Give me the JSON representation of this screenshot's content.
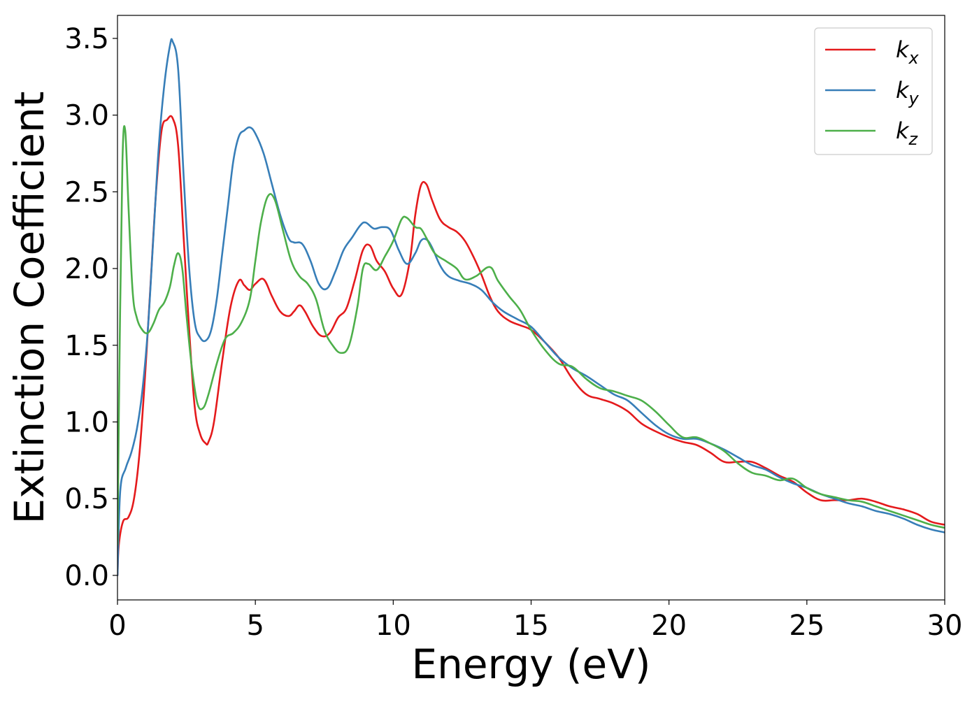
{
  "chart_data": {
    "type": "line",
    "title": "",
    "xlabel": "Energy (eV)",
    "ylabel": "Extinction Coefficient",
    "xlim": [
      0,
      30
    ],
    "ylim": [
      -0.16,
      3.65
    ],
    "xticks": [
      0,
      5,
      10,
      15,
      20,
      25,
      30
    ],
    "xtick_labels": [
      "0",
      "5",
      "10",
      "15",
      "20",
      "25",
      "30"
    ],
    "yticks": [
      0.0,
      0.5,
      1.0,
      1.5,
      2.0,
      2.5,
      3.0,
      3.5
    ],
    "ytick_labels": [
      "0.0",
      "0.5",
      "1.0",
      "1.5",
      "2.0",
      "2.5",
      "3.0",
      "3.5"
    ],
    "grid": false,
    "legend_position": "top-right",
    "series": [
      {
        "name": "k",
        "subscript": "x",
        "color": "#e41a1c",
        "x": [
          0,
          0.05,
          0.2,
          0.4,
          0.6,
          0.8,
          1.0,
          1.2,
          1.4,
          1.6,
          1.8,
          2.0,
          2.2,
          2.4,
          2.6,
          2.8,
          3.0,
          3.2,
          3.3,
          3.5,
          3.8,
          4.1,
          4.4,
          4.6,
          4.8,
          5.0,
          5.3,
          5.6,
          5.9,
          6.2,
          6.4,
          6.6,
          6.8,
          7.1,
          7.4,
          7.7,
          8.0,
          8.3,
          8.6,
          8.9,
          9.15,
          9.4,
          9.7,
          10.0,
          10.3,
          10.6,
          10.8,
          11.0,
          11.2,
          11.4,
          11.7,
          12.0,
          12.3,
          12.6,
          12.9,
          13.2,
          13.5,
          13.8,
          14.2,
          14.6,
          15.0,
          15.5,
          16.0,
          16.5,
          17.0,
          17.5,
          18.0,
          18.5,
          19.0,
          19.5,
          20.0,
          20.5,
          21.0,
          21.5,
          22.0,
          22.5,
          23.0,
          23.5,
          24.0,
          24.5,
          25.0,
          25.5,
          26.0,
          26.5,
          27.0,
          27.5,
          28.0,
          28.5,
          29.0,
          29.5,
          30.0
        ],
        "values": [
          0.0,
          0.2,
          0.35,
          0.38,
          0.5,
          0.8,
          1.3,
          1.9,
          2.5,
          2.9,
          2.97,
          2.98,
          2.8,
          2.2,
          1.6,
          1.1,
          0.92,
          0.86,
          0.87,
          1.0,
          1.4,
          1.75,
          1.92,
          1.89,
          1.86,
          1.9,
          1.93,
          1.82,
          1.72,
          1.69,
          1.72,
          1.76,
          1.72,
          1.62,
          1.56,
          1.58,
          1.68,
          1.74,
          1.92,
          2.12,
          2.15,
          2.05,
          1.98,
          1.87,
          1.83,
          2.05,
          2.35,
          2.54,
          2.55,
          2.45,
          2.32,
          2.27,
          2.24,
          2.18,
          2.08,
          1.96,
          1.82,
          1.72,
          1.66,
          1.63,
          1.6,
          1.52,
          1.42,
          1.28,
          1.18,
          1.15,
          1.12,
          1.07,
          0.99,
          0.94,
          0.9,
          0.87,
          0.85,
          0.8,
          0.74,
          0.74,
          0.74,
          0.7,
          0.65,
          0.61,
          0.54,
          0.49,
          0.49,
          0.49,
          0.5,
          0.48,
          0.45,
          0.43,
          0.4,
          0.35,
          0.33
        ]
      },
      {
        "name": "k",
        "subscript": "y",
        "color": "#377eb8",
        "x": [
          0,
          0.1,
          0.3,
          0.5,
          0.7,
          0.9,
          1.1,
          1.3,
          1.5,
          1.7,
          1.9,
          2.0,
          2.2,
          2.4,
          2.6,
          2.8,
          3.0,
          3.2,
          3.4,
          3.6,
          3.8,
          4.0,
          4.2,
          4.4,
          4.6,
          4.8,
          5.0,
          5.3,
          5.6,
          5.9,
          6.2,
          6.4,
          6.7,
          7.0,
          7.3,
          7.6,
          7.9,
          8.2,
          8.5,
          8.8,
          9.0,
          9.3,
          9.6,
          9.9,
          10.2,
          10.5,
          10.8,
          11.0,
          11.2,
          11.4,
          11.7,
          12.0,
          12.4,
          12.8,
          13.2,
          13.6,
          14.0,
          14.5,
          15.0,
          15.5,
          16.0,
          16.5,
          17.0,
          17.5,
          18.0,
          18.5,
          19.0,
          19.5,
          20.0,
          20.5,
          21.0,
          21.5,
          22.0,
          22.5,
          23.0,
          23.5,
          24.0,
          24.5,
          25.0,
          25.5,
          26.0,
          26.5,
          27.0,
          27.5,
          28.0,
          28.5,
          29.0,
          29.5,
          30.0
        ],
        "values": [
          0.0,
          0.55,
          0.7,
          0.8,
          0.95,
          1.2,
          1.6,
          2.2,
          2.8,
          3.2,
          3.45,
          3.48,
          3.3,
          2.6,
          2.0,
          1.65,
          1.55,
          1.53,
          1.6,
          1.8,
          2.1,
          2.4,
          2.7,
          2.86,
          2.9,
          2.92,
          2.88,
          2.75,
          2.55,
          2.35,
          2.2,
          2.17,
          2.16,
          2.05,
          1.9,
          1.87,
          1.98,
          2.12,
          2.2,
          2.28,
          2.3,
          2.26,
          2.27,
          2.25,
          2.12,
          2.03,
          2.1,
          2.18,
          2.19,
          2.14,
          2.02,
          1.95,
          1.92,
          1.9,
          1.86,
          1.78,
          1.72,
          1.67,
          1.62,
          1.52,
          1.42,
          1.35,
          1.3,
          1.24,
          1.18,
          1.14,
          1.06,
          0.98,
          0.92,
          0.89,
          0.89,
          0.86,
          0.82,
          0.77,
          0.72,
          0.69,
          0.64,
          0.6,
          0.57,
          0.53,
          0.5,
          0.47,
          0.45,
          0.42,
          0.4,
          0.37,
          0.33,
          0.3,
          0.28
        ]
      },
      {
        "name": "k",
        "subscript": "z",
        "color": "#4daf4a",
        "x": [
          0,
          0.08,
          0.18,
          0.28,
          0.4,
          0.55,
          0.7,
          0.9,
          1.1,
          1.3,
          1.5,
          1.7,
          1.9,
          2.05,
          2.2,
          2.35,
          2.5,
          2.7,
          2.9,
          3.1,
          3.3,
          3.6,
          3.9,
          4.2,
          4.5,
          4.8,
          5.0,
          5.2,
          5.45,
          5.7,
          6.0,
          6.3,
          6.6,
          6.9,
          7.2,
          7.5,
          7.8,
          8.1,
          8.4,
          8.7,
          8.9,
          9.1,
          9.4,
          9.7,
          10.0,
          10.3,
          10.5,
          10.8,
          11.0,
          11.2,
          11.5,
          11.9,
          12.3,
          12.6,
          13.0,
          13.5,
          13.8,
          14.2,
          14.6,
          15.0,
          15.5,
          16.0,
          16.5,
          17.0,
          17.5,
          18.0,
          18.5,
          19.0,
          19.5,
          20.0,
          20.5,
          21.0,
          21.5,
          22.0,
          22.5,
          23.0,
          23.5,
          24.0,
          24.5,
          25.0,
          25.5,
          26.0,
          26.5,
          27.0,
          27.5,
          28.0,
          28.5,
          29.0,
          29.5,
          30.0
        ],
        "values": [
          0.2,
          1.5,
          2.7,
          2.9,
          2.4,
          1.85,
          1.68,
          1.6,
          1.58,
          1.64,
          1.73,
          1.78,
          1.88,
          2.02,
          2.1,
          2.0,
          1.7,
          1.35,
          1.12,
          1.09,
          1.18,
          1.38,
          1.54,
          1.58,
          1.65,
          1.8,
          2.05,
          2.3,
          2.47,
          2.45,
          2.25,
          2.05,
          1.95,
          1.9,
          1.8,
          1.6,
          1.5,
          1.45,
          1.5,
          1.75,
          2.0,
          2.03,
          1.99,
          2.08,
          2.18,
          2.32,
          2.33,
          2.27,
          2.26,
          2.2,
          2.1,
          2.05,
          2.0,
          1.93,
          1.95,
          2.01,
          1.92,
          1.82,
          1.73,
          1.6,
          1.47,
          1.38,
          1.36,
          1.28,
          1.22,
          1.2,
          1.17,
          1.14,
          1.07,
          0.98,
          0.9,
          0.9,
          0.86,
          0.81,
          0.73,
          0.67,
          0.65,
          0.62,
          0.63,
          0.57,
          0.53,
          0.51,
          0.49,
          0.48,
          0.45,
          0.42,
          0.39,
          0.36,
          0.33,
          0.31
        ]
      }
    ]
  }
}
